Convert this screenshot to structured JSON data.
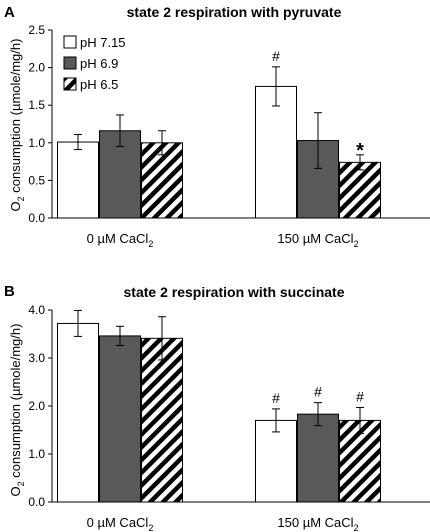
{
  "chart_data": [
    {
      "type": "bar",
      "panel": "A",
      "title": "state 2 respiration with pyruvate",
      "ylabel_main": "O",
      "ylabel_sub": "2",
      "ylabel_rest": " consumption (µmole/mg/h)",
      "ylim": [
        0,
        2.5
      ],
      "yticks": [
        "0.0",
        "0.5",
        "1.0",
        "1.5",
        "2.0",
        "2.5"
      ],
      "categories": [
        {
          "main": "0 µM CaCl",
          "sub": "2"
        },
        {
          "main": "150 µM CaCl",
          "sub": "2"
        }
      ],
      "series": [
        {
          "name": "pH 7.15",
          "fill": "white",
          "values": [
            1.01,
            1.75
          ],
          "errors": [
            0.1,
            0.26
          ],
          "annotations": [
            "",
            "#"
          ]
        },
        {
          "name": "pH 6.9",
          "fill": "gray",
          "values": [
            1.16,
            1.03
          ],
          "errors": [
            0.21,
            0.37
          ],
          "annotations": [
            "",
            ""
          ]
        },
        {
          "name": "pH 6.5",
          "fill": "hatch",
          "values": [
            1.0,
            0.74
          ],
          "errors": [
            0.16,
            0.1
          ],
          "annotations": [
            "",
            "*"
          ]
        }
      ],
      "legend": "top-left",
      "grid": false
    },
    {
      "type": "bar",
      "panel": "B",
      "title": "state 2 respiration with succinate",
      "ylabel_main": "O",
      "ylabel_sub": "2",
      "ylabel_rest": " consumption (µmole/mg/h)",
      "ylim": [
        0,
        4.0
      ],
      "yticks": [
        "0.0",
        "1.0",
        "2.0",
        "3.0",
        "4.0"
      ],
      "categories": [
        {
          "main": "0 µM CaCl",
          "sub": "2"
        },
        {
          "main": "150 µM CaCl",
          "sub": "2"
        }
      ],
      "series": [
        {
          "name": "pH 7.15",
          "fill": "white",
          "values": [
            3.72,
            1.7
          ],
          "errors": [
            0.27,
            0.24
          ],
          "annotations": [
            "",
            "#"
          ]
        },
        {
          "name": "pH 6.9",
          "fill": "gray",
          "values": [
            3.46,
            1.83
          ],
          "errors": [
            0.2,
            0.24
          ],
          "annotations": [
            "",
            "#"
          ]
        },
        {
          "name": "pH 6.5",
          "fill": "hatch",
          "values": [
            3.41,
            1.7
          ],
          "errors": [
            0.45,
            0.27
          ],
          "annotations": [
            "",
            "#"
          ]
        }
      ],
      "legend": "none",
      "grid": false
    }
  ]
}
